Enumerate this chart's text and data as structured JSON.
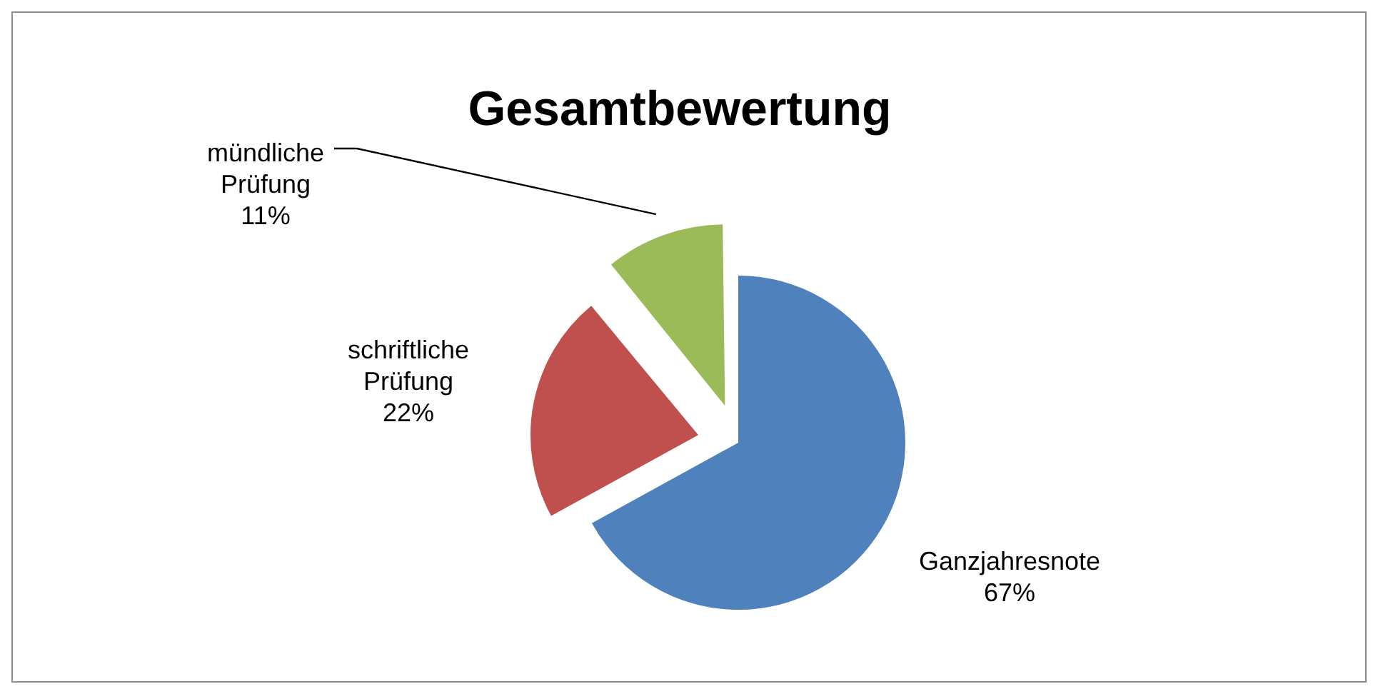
{
  "chart_data": {
    "type": "pie",
    "title": "Gesamtbewertung",
    "categories": [
      "Ganzjahresnote",
      "schriftliche Prüfung",
      "mündliche Prüfung"
    ],
    "values": [
      67,
      22,
      11
    ],
    "colors": [
      "#4f81bd",
      "#c0504d",
      "#9bbb59"
    ],
    "value_labels": [
      "67%",
      "22%",
      "11%"
    ],
    "legend": false
  }
}
